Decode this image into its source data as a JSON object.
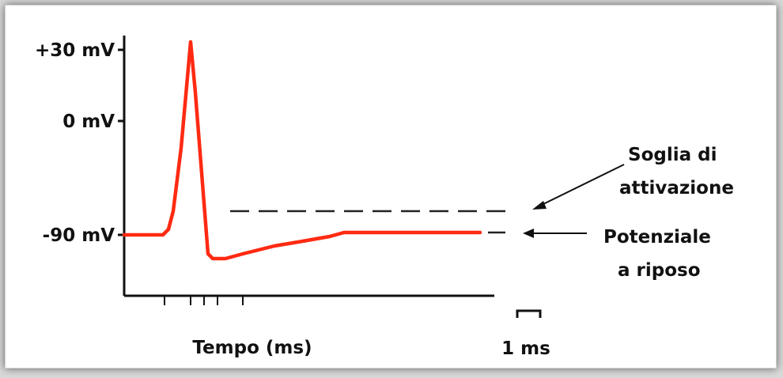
{
  "diagram": {
    "y_ticks": [
      {
        "label": "+30 mV",
        "value": 30
      },
      {
        "label": "0 mV",
        "value": 0
      },
      {
        "label": "-90 mV",
        "value": -90
      }
    ],
    "x_axis_label": "Tempo (ms)",
    "scale_bar_label": "1 ms",
    "threshold_label": [
      "Soglia di",
      "attivazione"
    ],
    "resting_label": [
      "Potenziale",
      "a riposo"
    ],
    "colors": {
      "trace": "#ff2a12",
      "axis": "#111111",
      "dashed": "#222222",
      "background": "#ffffff"
    }
  }
}
